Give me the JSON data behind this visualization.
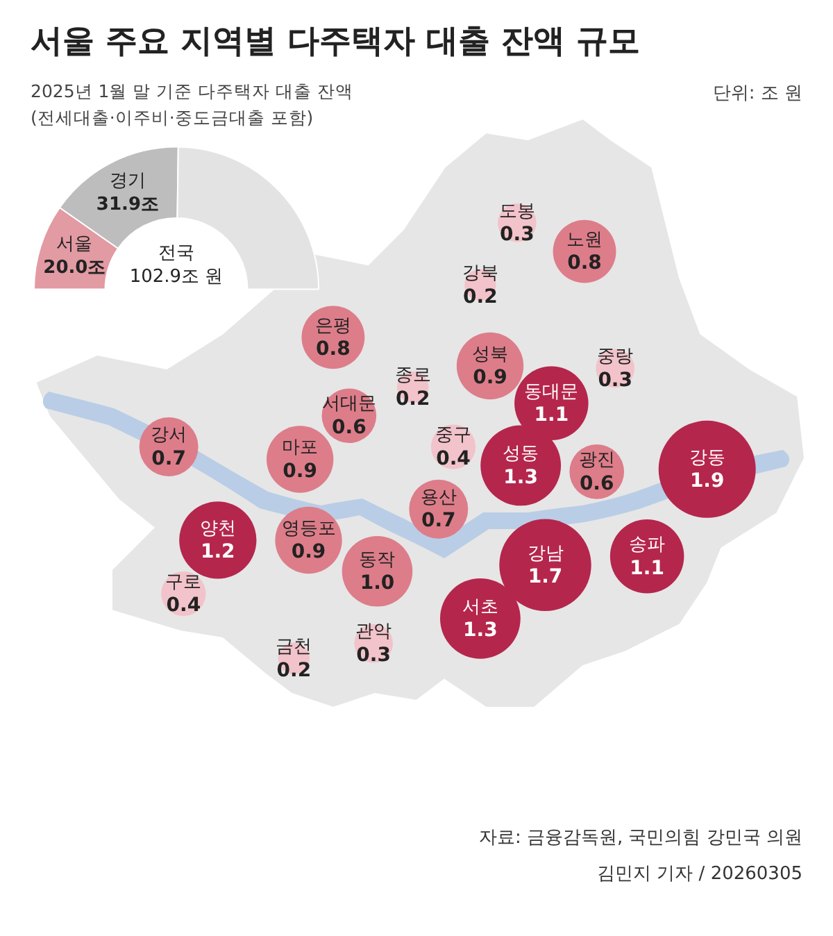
{
  "chart_data": [
    {
      "type": "other",
      "title": "서울 주요 지역별 다주택자 대출 잔액 규모",
      "subtitle": "2025년 1월 말 기준 다주택자 대출 잔액\n(전세대출·이주비·중도금대출 포함)",
      "annotations": [
        "단위: 조 원",
        "자료: 금융감독원, 국민의힘 강민국 의원",
        "김민지 기자 / 20260305"
      ],
      "categories": [
        "도봉",
        "노원",
        "강북",
        "은평",
        "성북",
        "중랑",
        "종로",
        "동대문",
        "서대문",
        "강서",
        "마포",
        "중구",
        "성동",
        "광진",
        "강동",
        "용산",
        "양천",
        "영등포",
        "강남",
        "송파",
        "동작",
        "구로",
        "서초",
        "금천",
        "관악"
      ],
      "values": [
        0.3,
        0.8,
        0.2,
        0.8,
        0.9,
        0.3,
        0.2,
        1.1,
        0.6,
        0.7,
        0.9,
        0.4,
        1.3,
        0.6,
        1.9,
        0.7,
        1.2,
        0.9,
        1.7,
        1.1,
        1.0,
        0.4,
        1.3,
        0.2,
        0.3
      ],
      "colors": [
        "#f2c3ca",
        "#dd7d8a",
        "#f2c3ca",
        "#dd7d8a",
        "#dd7d8a",
        "#f2c3ca",
        "#f2c3ca",
        "#b5264c",
        "#dd7d8a",
        "#dd7d8a",
        "#dd7d8a",
        "#f2c3ca",
        "#b5264c",
        "#dd7d8a",
        "#b5264c",
        "#dd7d8a",
        "#b5264c",
        "#dd7d8a",
        "#b5264c",
        "#b5264c",
        "#dd7d8a",
        "#f2c3ca",
        "#b5264c",
        "#f2c3ca",
        "#f2c3ca"
      ],
      "value_labels": [
        "0.3",
        "0.8",
        "0.2",
        "0.8",
        "0.9",
        "0.3",
        "0.2",
        "1.1",
        "0.6",
        "0.7",
        "0.9",
        "0.4",
        "1.3",
        "0.6",
        "1.9",
        "0.7",
        "1.2",
        "0.9",
        "1.7",
        "1.1",
        "1.0",
        "0.4",
        "1.3",
        "0.2",
        "0.3"
      ]
    },
    {
      "type": "donut",
      "categories": [
        "서울",
        "경기",
        null
      ],
      "values": [
        20.0,
        31.9,
        51.0
      ],
      "colors": [
        "#e29aa3",
        "#bdbdbd",
        "#e3e3e3"
      ],
      "value_labels": [
        "20.0조",
        "31.9조",
        null
      ],
      "annotations": [
        "전국 102.9조 원"
      ]
    }
  ]
}
